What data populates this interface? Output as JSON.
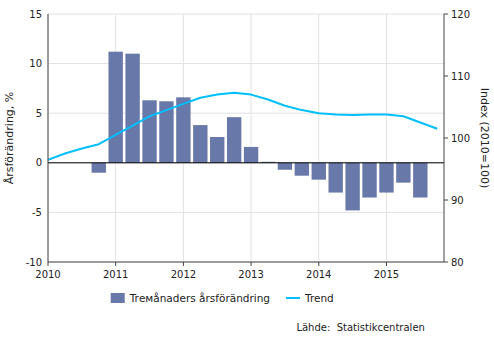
{
  "chart_data": {
    "type": "bar",
    "ylabel": "Årsförändring, %",
    "y2label": "Index (2010=100)",
    "source": "Lähde:  Statistikcentralen",
    "xlim": [
      2010.0,
      2015.85
    ],
    "xticks": [
      2010,
      2011,
      2012,
      2013,
      2014,
      2015
    ],
    "ylim": [
      -10,
      15
    ],
    "yticks": [
      -10,
      -5,
      0,
      5,
      10,
      15
    ],
    "y2lim": [
      80,
      120
    ],
    "y2ticks": [
      80,
      90,
      100,
      110,
      120
    ],
    "grid": true,
    "legend": "bottom",
    "series": [
      {
        "name": "Trемånaders årsförändring",
        "type": "bar",
        "color": "#6878a8",
        "x": [
          2010.75,
          2011.0,
          2011.25,
          2011.5,
          2011.75,
          2012.0,
          2012.25,
          2012.5,
          2012.75,
          2013.0,
          2013.25,
          2013.5,
          2013.75,
          2014.0,
          2014.25,
          2014.5,
          2014.75,
          2015.0,
          2015.25,
          2015.5
        ],
        "values": [
          -1.0,
          11.2,
          11.0,
          6.3,
          6.2,
          6.6,
          3.8,
          2.6,
          4.6,
          1.6,
          0.1,
          -0.7,
          -1.3,
          -1.7,
          -3.0,
          -4.8,
          -3.5,
          -3.0,
          -2.0,
          -3.5
        ]
      },
      {
        "name": "Trend",
        "type": "line",
        "color": "#00bfff",
        "axis": "y2",
        "x": [
          2010.0,
          2010.25,
          2010.5,
          2010.75,
          2011.0,
          2011.25,
          2011.5,
          2011.75,
          2012.0,
          2012.25,
          2012.5,
          2012.75,
          2013.0,
          2013.25,
          2013.5,
          2013.75,
          2014.0,
          2014.25,
          2014.5,
          2014.75,
          2015.0,
          2015.25,
          2015.5,
          2015.75
        ],
        "values": [
          96.5,
          97.5,
          98.3,
          99.0,
          100.5,
          102.0,
          103.5,
          104.5,
          105.5,
          106.5,
          107.0,
          107.3,
          107.0,
          106.2,
          105.2,
          104.5,
          104.0,
          103.8,
          103.7,
          103.8,
          103.8,
          103.5,
          102.5,
          101.5
        ]
      }
    ]
  }
}
